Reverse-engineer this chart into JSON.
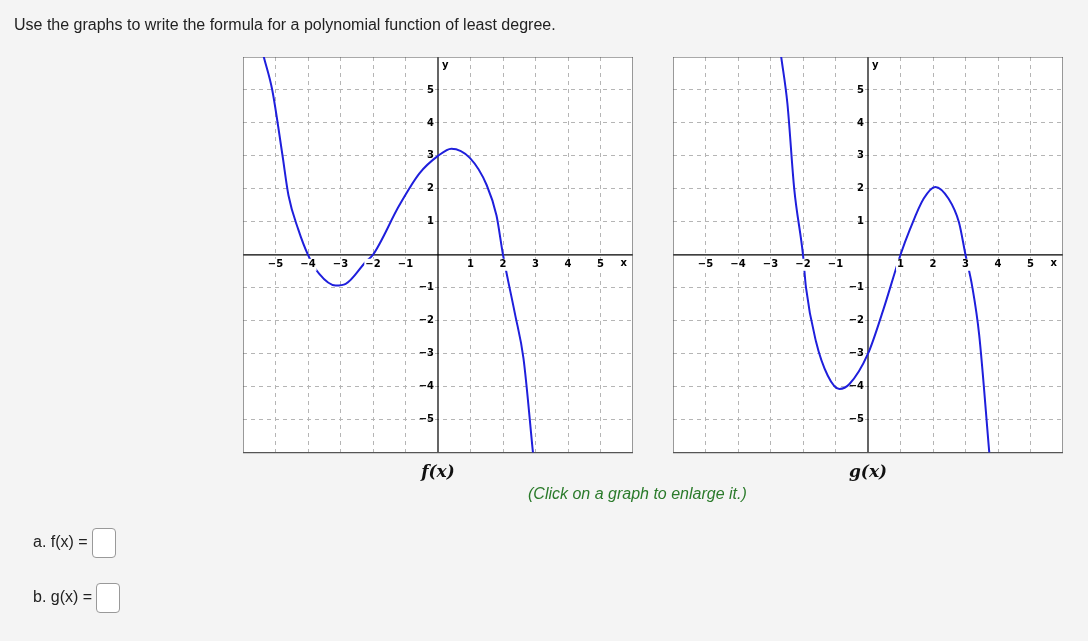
{
  "chart_data": [
    {
      "type": "line",
      "title": "f(x)",
      "xlabel": "x",
      "ylabel": "y",
      "xlim": [
        -6,
        6
      ],
      "ylim": [
        -6,
        6
      ],
      "xticks": [
        -5,
        -4,
        -3,
        -2,
        -1,
        1,
        2,
        3,
        4,
        5
      ],
      "yticks": [
        -5,
        -4,
        -3,
        -2,
        -1,
        1,
        2,
        3,
        4,
        5
      ],
      "grid": true,
      "legend": false,
      "marker": "none",
      "line_style": "solid",
      "annotations": [
        "Use the graphs to write the formula for a polynomial function of least degree.",
        "(Click on a graph to enlarge it.)",
        "a. f(x) =",
        "b. g(x) ="
      ],
      "series": [
        {
          "color": "#1f1fdc",
          "x": [
            -5.36,
            -5.1,
            -4.79,
            -4.6,
            -4.3,
            -4.0,
            -3.66,
            -3.15,
            -2.84,
            -2.22,
            -2.0,
            -1.19,
            -0.57,
            0,
            0.41,
            0.98,
            1.5,
            1.8,
            2.0,
            2.37,
            2.63,
            2.92
          ],
          "values": [
            6.0,
            5.0,
            3.05,
            1.8,
            0.77,
            0,
            -0.57,
            -0.93,
            -0.88,
            -0.21,
            0,
            1.5,
            2.47,
            3.0,
            3.22,
            2.94,
            2.11,
            1.19,
            0,
            -1.8,
            -3.14,
            -5.98
          ]
        }
      ]
    },
    {
      "type": "line",
      "title": "g(x)",
      "xlabel": "x",
      "ylabel": "y",
      "xlim": [
        -6,
        6
      ],
      "ylim": [
        -6,
        6
      ],
      "xticks": [
        -5,
        -4,
        -3,
        -2,
        -1,
        1,
        2,
        3,
        4,
        5
      ],
      "yticks": [
        -5,
        -4,
        -3,
        -2,
        -1,
        1,
        2,
        3,
        4,
        5
      ],
      "grid": true,
      "legend": false,
      "marker": "none",
      "line_style": "solid",
      "series": [
        {
          "color": "#1f1fdc",
          "x": [
            -2.67,
            -2.48,
            -2.27,
            -2.0,
            -1.91,
            -1.6,
            -1.24,
            -0.88,
            -0.57,
            0,
            0.46,
            1.0,
            1.29,
            1.71,
            2.07,
            2.48,
            2.8,
            3.0,
            3.21,
            3.42,
            3.73
          ],
          "values": [
            6.0,
            4.59,
            2.0,
            0,
            -0.98,
            -2.63,
            -3.66,
            -4.07,
            -3.92,
            -3.0,
            -1.7,
            0,
            0.77,
            1.7,
            2.06,
            1.7,
            0.98,
            0,
            -0.98,
            -2.42,
            -5.98
          ]
        }
      ]
    }
  ]
}
